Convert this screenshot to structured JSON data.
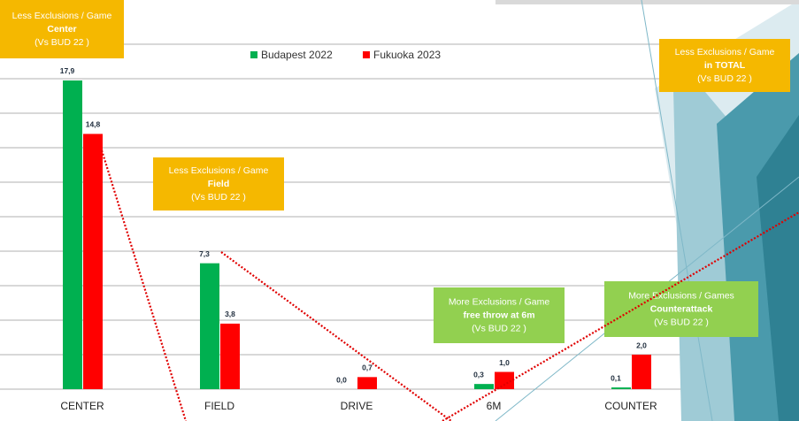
{
  "chart_data": {
    "type": "bar",
    "categories": [
      "CENTER",
      "FIELD",
      "DRIVE",
      "6M",
      "COUNTER"
    ],
    "series": [
      {
        "name": "Budapest 2022",
        "color": "#00b050",
        "values": [
          17.9,
          7.3,
          0.0,
          0.3,
          0.1
        ],
        "value_labels": [
          "17,9",
          "7,3",
          "0,0",
          "0,3",
          "0,1"
        ]
      },
      {
        "name": "Fukuoka 2023",
        "color": "#ff0000",
        "values": [
          14.8,
          3.8,
          0.7,
          1.0,
          2.0
        ],
        "value_labels": [
          "14,8",
          "3,8",
          "0,7",
          "1,0",
          "2,0"
        ]
      }
    ],
    "ylim": [
      0,
      20
    ],
    "yticks": [
      0,
      2,
      4,
      6,
      8,
      10,
      12,
      14,
      16,
      18,
      20
    ],
    "grid": true,
    "annotations": [
      {
        "color": "#f5b800",
        "lines": [
          "Less Exclusions / Game",
          "Center",
          "(Vs BUD 22 )"
        ]
      },
      {
        "color": "#f5b800",
        "lines": [
          "Less Exclusions / Game",
          "Field",
          "(Vs BUD 22 )"
        ]
      },
      {
        "color": "#f5b800",
        "lines": [
          "Less Exclusions / Game",
          "in TOTAL",
          "(Vs BUD 22 )"
        ]
      },
      {
        "color": "#92d050",
        "lines": [
          "More Exclusions / Game",
          "free throw at 6m",
          "(Vs BUD 22 )"
        ]
      },
      {
        "color": "#92d050",
        "lines": [
          "More Exclusions / Games",
          "Counterattack",
          "(Vs BUD 22 )"
        ]
      }
    ]
  }
}
